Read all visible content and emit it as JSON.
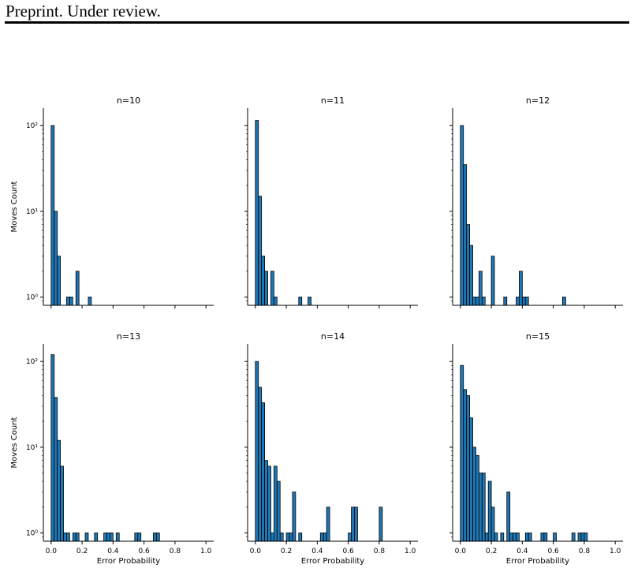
{
  "header": {
    "text": "Preprint. Under review."
  },
  "chart_data": {
    "type": "bar",
    "layout": "3x2 grid of histograms, shared axes",
    "yscale": "log",
    "ylim": [
      0.8,
      160
    ],
    "xlim": [
      -0.05,
      1.05
    ],
    "xlabel": "Error Probability",
    "ylabel": "Moves Count",
    "x_ticks": [
      "0.0",
      "0.2",
      "0.4",
      "0.6",
      "0.8",
      "1.0"
    ],
    "y_ticks": [
      "10⁰",
      "10¹",
      "10²"
    ],
    "bar_color": "#1f77b4",
    "edge_color": "#000000",
    "bin_width": 0.02,
    "panels": [
      {
        "title": "n=10",
        "bins": [
          {
            "x": 0.0,
            "value": 100
          },
          {
            "x": 0.02,
            "value": 10
          },
          {
            "x": 0.04,
            "value": 3
          },
          {
            "x": 0.1,
            "value": 1
          },
          {
            "x": 0.12,
            "value": 1
          },
          {
            "x": 0.16,
            "value": 2
          },
          {
            "x": 0.24,
            "value": 1
          }
        ]
      },
      {
        "title": "n=11",
        "bins": [
          {
            "x": 0.0,
            "value": 115
          },
          {
            "x": 0.02,
            "value": 15
          },
          {
            "x": 0.04,
            "value": 3
          },
          {
            "x": 0.06,
            "value": 2
          },
          {
            "x": 0.1,
            "value": 2
          },
          {
            "x": 0.12,
            "value": 1
          },
          {
            "x": 0.28,
            "value": 1
          },
          {
            "x": 0.34,
            "value": 1
          }
        ]
      },
      {
        "title": "n=12",
        "bins": [
          {
            "x": 0.0,
            "value": 100
          },
          {
            "x": 0.02,
            "value": 35
          },
          {
            "x": 0.04,
            "value": 7
          },
          {
            "x": 0.06,
            "value": 4
          },
          {
            "x": 0.08,
            "value": 1
          },
          {
            "x": 0.1,
            "value": 1
          },
          {
            "x": 0.12,
            "value": 2
          },
          {
            "x": 0.14,
            "value": 1
          },
          {
            "x": 0.2,
            "value": 3
          },
          {
            "x": 0.28,
            "value": 1
          },
          {
            "x": 0.36,
            "value": 1
          },
          {
            "x": 0.38,
            "value": 2
          },
          {
            "x": 0.4,
            "value": 1
          },
          {
            "x": 0.42,
            "value": 1
          },
          {
            "x": 0.66,
            "value": 1
          }
        ]
      },
      {
        "title": "n=13",
        "bins": [
          {
            "x": 0.0,
            "value": 120
          },
          {
            "x": 0.02,
            "value": 38
          },
          {
            "x": 0.04,
            "value": 12
          },
          {
            "x": 0.06,
            "value": 6
          },
          {
            "x": 0.08,
            "value": 1
          },
          {
            "x": 0.1,
            "value": 1
          },
          {
            "x": 0.14,
            "value": 1
          },
          {
            "x": 0.16,
            "value": 1
          },
          {
            "x": 0.22,
            "value": 1
          },
          {
            "x": 0.28,
            "value": 1
          },
          {
            "x": 0.34,
            "value": 1
          },
          {
            "x": 0.36,
            "value": 1
          },
          {
            "x": 0.38,
            "value": 1
          },
          {
            "x": 0.42,
            "value": 1
          },
          {
            "x": 0.54,
            "value": 1
          },
          {
            "x": 0.56,
            "value": 1
          },
          {
            "x": 0.66,
            "value": 1
          },
          {
            "x": 0.68,
            "value": 1
          }
        ]
      },
      {
        "title": "n=14",
        "bins": [
          {
            "x": 0.0,
            "value": 100
          },
          {
            "x": 0.02,
            "value": 50
          },
          {
            "x": 0.04,
            "value": 33
          },
          {
            "x": 0.06,
            "value": 7
          },
          {
            "x": 0.08,
            "value": 6
          },
          {
            "x": 0.1,
            "value": 1
          },
          {
            "x": 0.12,
            "value": 6
          },
          {
            "x": 0.14,
            "value": 4
          },
          {
            "x": 0.16,
            "value": 1
          },
          {
            "x": 0.2,
            "value": 1
          },
          {
            "x": 0.22,
            "value": 1
          },
          {
            "x": 0.24,
            "value": 3
          },
          {
            "x": 0.28,
            "value": 1
          },
          {
            "x": 0.42,
            "value": 1
          },
          {
            "x": 0.44,
            "value": 1
          },
          {
            "x": 0.46,
            "value": 2
          },
          {
            "x": 0.6,
            "value": 1
          },
          {
            "x": 0.62,
            "value": 2
          },
          {
            "x": 0.64,
            "value": 2
          },
          {
            "x": 0.8,
            "value": 2
          }
        ]
      },
      {
        "title": "n=15",
        "bins": [
          {
            "x": 0.0,
            "value": 90
          },
          {
            "x": 0.02,
            "value": 47
          },
          {
            "x": 0.04,
            "value": 40
          },
          {
            "x": 0.06,
            "value": 22
          },
          {
            "x": 0.08,
            "value": 10
          },
          {
            "x": 0.1,
            "value": 8
          },
          {
            "x": 0.12,
            "value": 5
          },
          {
            "x": 0.14,
            "value": 5
          },
          {
            "x": 0.16,
            "value": 1
          },
          {
            "x": 0.18,
            "value": 4
          },
          {
            "x": 0.2,
            "value": 2
          },
          {
            "x": 0.22,
            "value": 1
          },
          {
            "x": 0.26,
            "value": 1
          },
          {
            "x": 0.3,
            "value": 3
          },
          {
            "x": 0.32,
            "value": 1
          },
          {
            "x": 0.34,
            "value": 1
          },
          {
            "x": 0.36,
            "value": 1
          },
          {
            "x": 0.42,
            "value": 1
          },
          {
            "x": 0.44,
            "value": 1
          },
          {
            "x": 0.52,
            "value": 1
          },
          {
            "x": 0.54,
            "value": 1
          },
          {
            "x": 0.6,
            "value": 1
          },
          {
            "x": 0.72,
            "value": 1
          },
          {
            "x": 0.76,
            "value": 1
          },
          {
            "x": 0.78,
            "value": 1
          },
          {
            "x": 0.8,
            "value": 1
          }
        ]
      }
    ]
  }
}
